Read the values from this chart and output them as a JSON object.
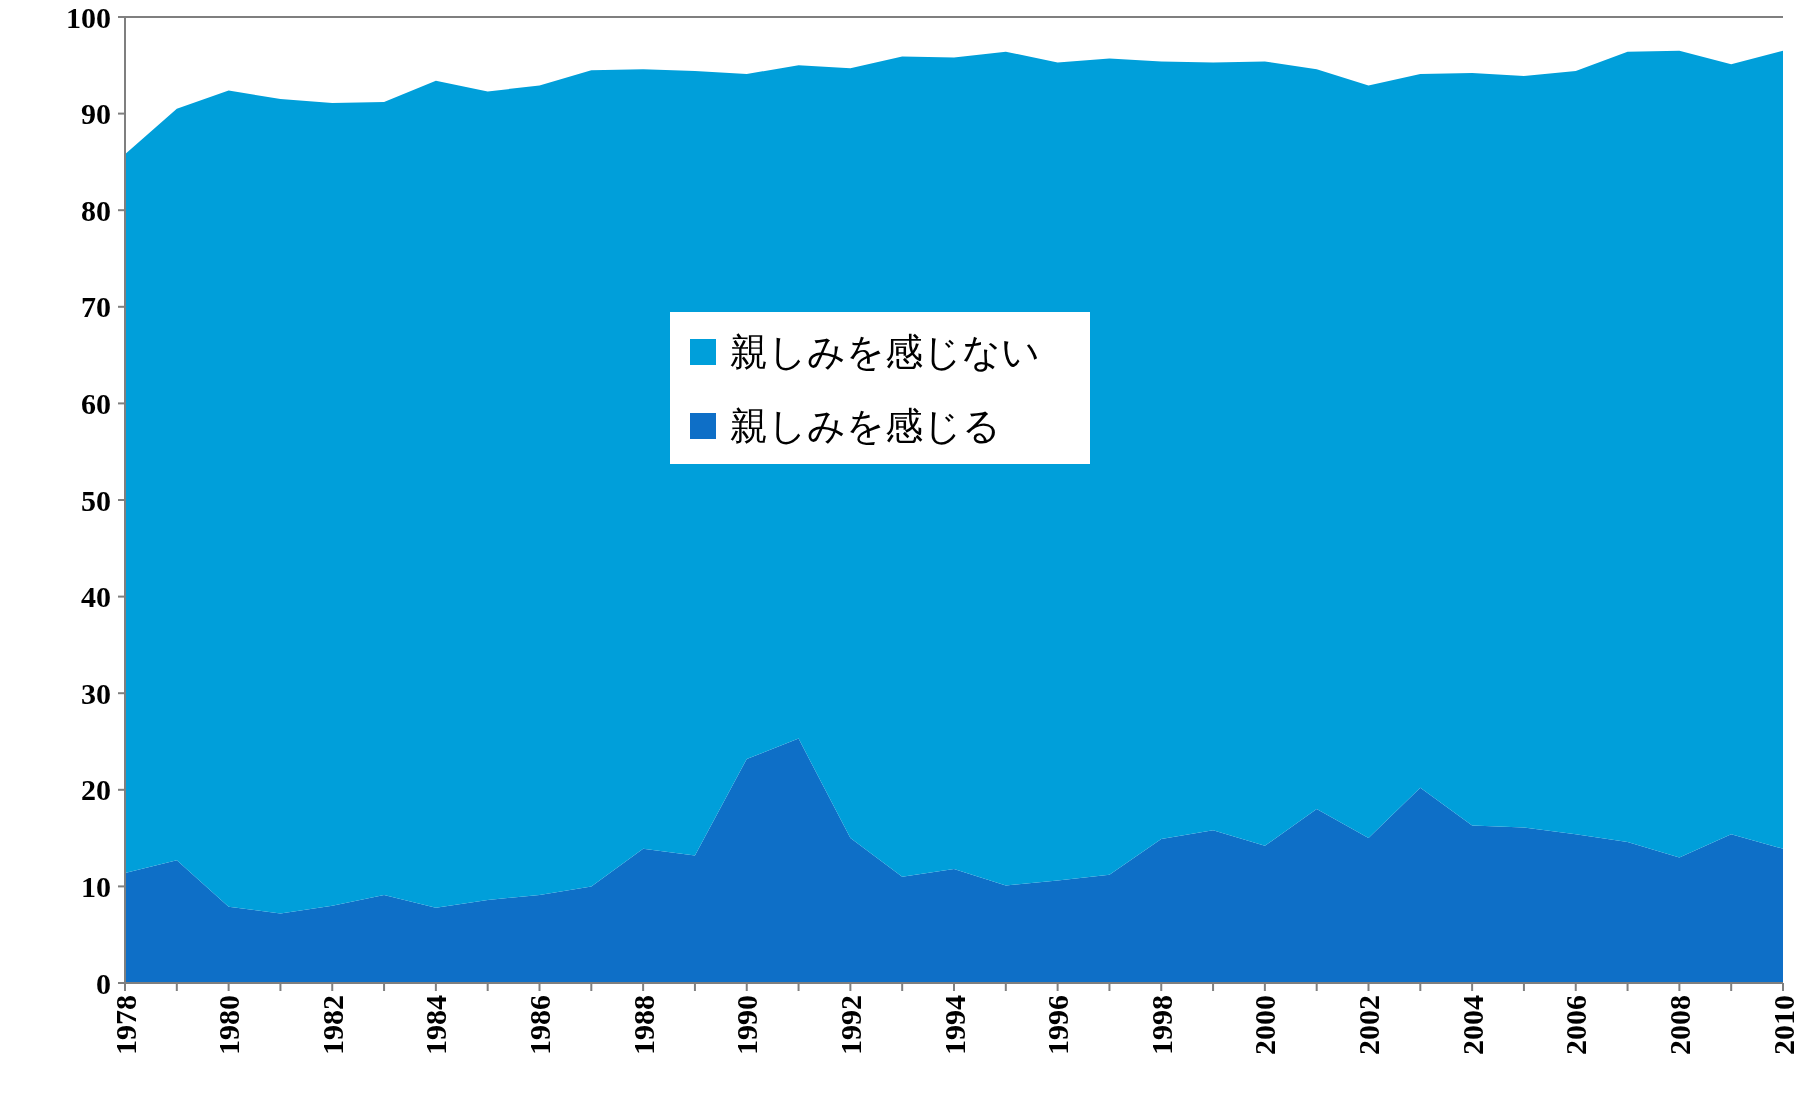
{
  "chart_data": {
    "type": "area",
    "stacked": true,
    "categories": [
      "1978",
      null,
      "1980",
      null,
      "1982",
      null,
      "1984",
      null,
      "1986",
      null,
      "1988",
      null,
      "1990",
      null,
      "1992",
      null,
      "1994",
      null,
      "1996",
      null,
      "1998",
      null,
      "2000",
      null,
      "2002",
      null,
      "2004",
      null,
      "2006",
      null,
      "2008",
      null,
      "2010"
    ],
    "series": [
      {
        "name": "親しみを感じる",
        "color": "#0e6fc7",
        "values": [
          11.4,
          12.7,
          7.9,
          7.2,
          8.0,
          9.1,
          7.8,
          8.6,
          9.1,
          10.0,
          13.9,
          13.2,
          23.2,
          25.3,
          15.0,
          11.0,
          11.8,
          10.1,
          10.6,
          11.2,
          14.9,
          15.8,
          14.2,
          18.0,
          15.0,
          20.2,
          16.3,
          16.1,
          15.4,
          14.6,
          13.0,
          15.4,
          13.9
        ]
      },
      {
        "name": "親しみを感じない",
        "color": "#009fda",
        "values": [
          74.4,
          77.8,
          84.5,
          84.3,
          83.1,
          82.1,
          85.6,
          83.7,
          83.8,
          84.5,
          80.7,
          81.2,
          70.9,
          69.7,
          79.7,
          84.9,
          84.0,
          86.3,
          84.7,
          84.5,
          80.5,
          79.5,
          81.2,
          76.6,
          77.9,
          73.9,
          77.9,
          77.8,
          79.0,
          81.8,
          83.5,
          79.7,
          82.6
        ]
      }
    ],
    "ylim": [
      0,
      100
    ],
    "yticks": [
      0,
      10,
      20,
      30,
      40,
      50,
      60,
      70,
      80,
      90,
      100
    ],
    "grid": false,
    "legend": "center"
  }
}
